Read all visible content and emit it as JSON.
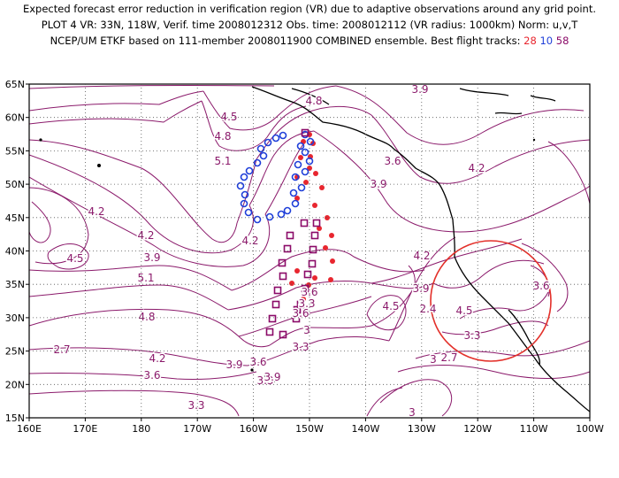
{
  "header": {
    "line1": "Expected forecast error reduction in verification region (VR) due to adaptive observations around any grid point.",
    "line2": "PLOT 4 VR: 33N, 118W, Verif. time 2008012312 Obs. time: 2008012112 (VR radius: 1000km) Norm: u,v,T",
    "line3_prefix": "NCEP/UM ETKF based on 111-member 2008011900 COMBINED ensemble.  Best flight tracks:",
    "track_a": "28",
    "track_b": "10",
    "track_c": "58"
  },
  "colors": {
    "contour": "#8b1a6b",
    "track_a": "#e8262f",
    "track_b": "#1f3fd9",
    "track_c": "#8b0a68",
    "vr_circle": "#e3302a",
    "coast": "#000000"
  },
  "axes": {
    "lat_labels": [
      "65N",
      "60N",
      "55N",
      "50N",
      "45N",
      "40N",
      "35N",
      "30N",
      "25N",
      "20N",
      "15N"
    ],
    "lon_labels": [
      "160E",
      "170E",
      "180",
      "170W",
      "160W",
      "150W",
      "140W",
      "130W",
      "120W",
      "110W",
      "100W"
    ]
  },
  "contour_labels": [
    "3.9",
    "4.8",
    "4.5",
    "4.8",
    "5.1",
    "3.6",
    "4.2",
    "3.9",
    "4.2",
    "4.5",
    "4.2",
    "3.9",
    "5.1",
    "3.6",
    "4.2",
    "3.9",
    "3.6",
    "4.8",
    "2.7",
    "3.3",
    "3.6",
    "4.5",
    "3.3",
    "3",
    "3.3",
    "4.2",
    "3.9",
    "3.6",
    "3.6",
    "3.3",
    "3",
    "2.7",
    "3.3",
    "3",
    "3.9",
    "4.2",
    "2.4",
    "4.5"
  ]
}
